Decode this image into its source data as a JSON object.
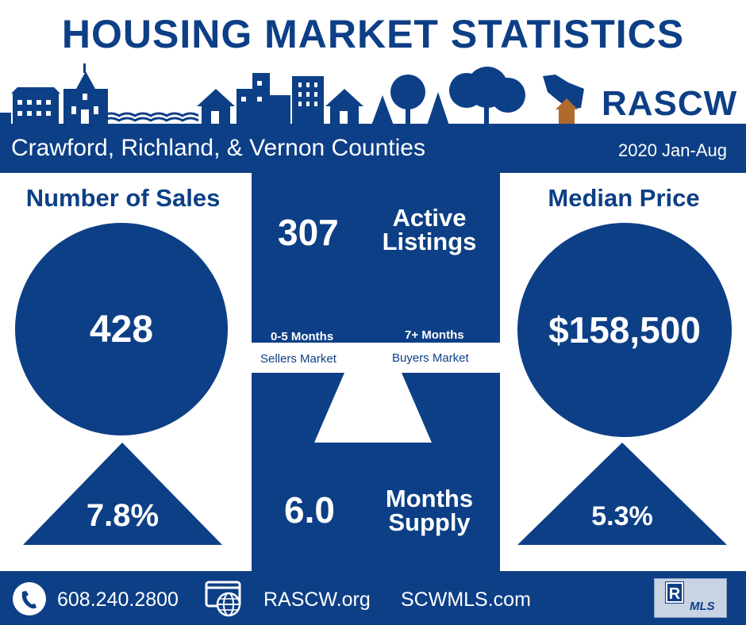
{
  "title": "HOUSING MARKET STATISTICS",
  "logo": {
    "text": "RASCW",
    "icon": "wisconsin-house-icon"
  },
  "region": {
    "name": "Crawford, Richland, & Vernon Counties",
    "period": "2020 Jan-Aug"
  },
  "sales": {
    "heading": "Number of Sales",
    "value": "428",
    "change": "7.8%",
    "change_direction": "up"
  },
  "median_price": {
    "heading": "Median Price",
    "value": "$158,500",
    "change": "5.3%",
    "change_direction": "up"
  },
  "active_listings": {
    "value": "307",
    "label_line1": "Active",
    "label_line2": "Listings"
  },
  "months_supply": {
    "value": "6.0",
    "label_line1": "Months",
    "label_line2": "Supply"
  },
  "market_scale": {
    "seller_range": "0-5 Months",
    "seller_label": "Sellers Market",
    "buyer_range": "7+ Months",
    "buyer_label": "Buyers Market"
  },
  "footer": {
    "phone": "608.240.2800",
    "site1": "RASCW.org",
    "site2": "SCWMLS.com",
    "phone_icon": "phone-icon",
    "web_icon": "web-globe-icon",
    "mls_logo_letter": "R",
    "mls_logo_text": "MLS"
  },
  "colors": {
    "primary": "#0d3f86",
    "background": "#ffffff",
    "house_accent": "#b06a2b"
  }
}
